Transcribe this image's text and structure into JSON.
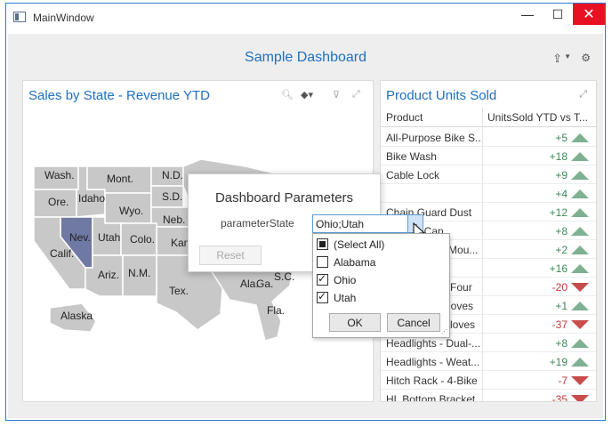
{
  "window": {
    "title": "MainWindow",
    "min_icon": "minimize-icon",
    "max_icon": "maximize-icon",
    "close_icon": "close-icon"
  },
  "dashboard": {
    "title": "Sample Dashboard",
    "export_icon": "export-icon",
    "parameters_icon": "parameters-icon"
  },
  "map_panel": {
    "title": "Sales by State - Revenue YTD",
    "tools": [
      "zoom-icon",
      "layers-icon",
      "clear-filter-icon",
      "maximize-icon"
    ],
    "state_labels": [
      "Wash.",
      "Mont.",
      "N.D.",
      "Ore.",
      "Idaho",
      "S.D.",
      "Wyo.",
      "Neb.",
      "Nev.",
      "Utah",
      "Colo.",
      "Kan.",
      "Calif.",
      "Ariz.",
      "N.M.",
      "Tex.",
      "Ala.",
      "Ga.",
      "S.C.",
      "Fla.",
      "Alaska"
    ],
    "highlight_color": "#7079a3",
    "state_color": "#c8c8c8"
  },
  "grid_panel": {
    "title": "Product Units Sold",
    "columns": [
      "Product",
      "UnitsSold YTD vs T..."
    ],
    "rows": [
      {
        "product": "All-Purpose Bike S...",
        "value": "+5",
        "trend": "up"
      },
      {
        "product": "Bike Wash",
        "value": "+18",
        "trend": "up"
      },
      {
        "product": "Cable Lock",
        "value": "+9",
        "trend": "up"
      },
      {
        "product": "",
        "value": "+4",
        "trend": "up"
      },
      {
        "product": "Chain Guard Dust",
        "value": "+12",
        "trend": "up"
      },
      {
        "product": "Cycling Cap",
        "value": "+8",
        "trend": "up"
      },
      {
        "product": "Fender Set - Mou...",
        "value": "+2",
        "trend": "up"
      },
      {
        "product": "",
        "value": "+16",
        "trend": "up"
      },
      {
        "product": "Front Brakes Four",
        "value": "-20",
        "trend": "down"
      },
      {
        "product": "Full-Finger Gloves",
        "value": "+1",
        "trend": "up"
      },
      {
        "product": "Half-Finger Gloves",
        "value": "-37",
        "trend": "down"
      },
      {
        "product": "Headlights - Dual-...",
        "value": "+8",
        "trend": "up"
      },
      {
        "product": "Headlights - Weat...",
        "value": "+19",
        "trend": "up"
      },
      {
        "product": "Hitch Rack - 4-Bike",
        "value": "-7",
        "trend": "down"
      },
      {
        "product": "HL Bottom Bracket",
        "value": "-35",
        "trend": "down"
      }
    ],
    "up_color": "#3c8a59",
    "down_color": "#c0393b"
  },
  "dialog": {
    "title": "Dashboard Parameters",
    "param_label": "parameterState",
    "param_value": "Ohio;Utah",
    "reset_label": "Reset",
    "dropdown": {
      "items": [
        {
          "label": "(Select All)",
          "state": "partial"
        },
        {
          "label": "Alabama",
          "state": "unchecked"
        },
        {
          "label": "Ohio",
          "state": "checked"
        },
        {
          "label": "Utah",
          "state": "checked"
        }
      ],
      "ok_label": "OK",
      "cancel_label": "Cancel"
    }
  }
}
